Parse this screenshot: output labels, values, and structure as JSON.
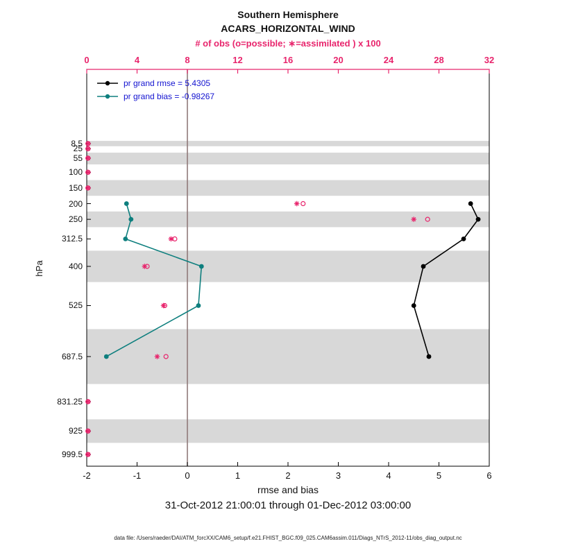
{
  "titles": {
    "line1": "Southern Hemisphere",
    "line2": "ACARS_HORIZONTAL_WIND"
  },
  "axes": {
    "top_label": "# of obs (o=possible; ∗=assimilated ) x 100",
    "bottom_label": "rmse and bias",
    "left_label": "hPa"
  },
  "legend": {
    "rmse_label": "pr grand rmse = 5.4305",
    "bias_label": "pr grand bias = -0.98267"
  },
  "footer": {
    "timespan": "31-Oct-2012 21:00:01 through 01-Dec-2012 03:00:00",
    "datafile": "data file: /Users/raeder/DAI/ATM_forcXX/CAM6_setup/f.e21.FHIST_BGC.f09_025.CAM6assim.011/Diags_NTrS_2012-11/obs_diag_output.nc"
  },
  "colors": {
    "obs_pink": "#e8246c",
    "rmse_black": "#000000",
    "bias_teal": "#0e7f7e",
    "legend_text_blue": "#1212d0",
    "band_gray": "#d8d8d8",
    "zero_line": "#8f7a7a",
    "frame": "#000000"
  },
  "chart_data": {
    "type": "line",
    "title": "Southern Hemisphere ACARS_HORIZONTAL_WIND",
    "xlabel": "rmse and bias",
    "ylabel": "hPa",
    "top_xlabel": "# of obs (o=possible; *=assimilated ) x 100",
    "y_axis": {
      "unit": "hPa",
      "levels": [
        8.5,
        25,
        55,
        100,
        150,
        200,
        250,
        312.5,
        400,
        525,
        687.5,
        831.25,
        925,
        999.5
      ],
      "range": [
        -228,
        1037
      ]
    },
    "x_bottom_axis": {
      "ticks": [
        -2,
        -1,
        0,
        1,
        2,
        3,
        4,
        5,
        6
      ],
      "range": [
        -2,
        6
      ]
    },
    "x_top_axis": {
      "ticks": [
        0,
        4,
        8,
        12,
        16,
        20,
        24,
        28,
        32
      ],
      "range": [
        0,
        32
      ]
    },
    "grand_stats": {
      "rmse": 5.4305,
      "bias": -0.98267
    },
    "series": [
      {
        "name": "rmse",
        "color": "#000000",
        "levels": [
          200,
          250,
          312.5,
          400,
          525,
          687.5
        ],
        "values": [
          5.63,
          5.78,
          5.49,
          4.69,
          4.5,
          4.8
        ]
      },
      {
        "name": "bias",
        "color": "#0e7f7e",
        "levels": [
          200,
          250,
          312.5,
          400,
          525,
          687.5
        ],
        "values": [
          -1.21,
          -1.12,
          -1.23,
          0.28,
          0.22,
          -1.61
        ]
      }
    ],
    "obs_counts_x100": {
      "levels": [
        8.5,
        25,
        55,
        100,
        150,
        200,
        250,
        312.5,
        400,
        525,
        687.5,
        831.25,
        925,
        999.5
      ],
      "possible": [
        0.1,
        0.1,
        0.1,
        0.1,
        0.1,
        17.2,
        27.1,
        7.0,
        4.8,
        6.2,
        6.3,
        0.1,
        0.1,
        0.1
      ],
      "assimilated": [
        0.1,
        0.1,
        0.1,
        0.1,
        0.1,
        16.7,
        26.0,
        6.7,
        4.6,
        6.1,
        5.6,
        0.1,
        0.1,
        0.1
      ]
    },
    "shaded_bins": [
      [
        0,
        17
      ],
      [
        37.5,
        75
      ],
      [
        125,
        175
      ],
      [
        225,
        275
      ],
      [
        350,
        450
      ],
      [
        600,
        775
      ],
      [
        887.5,
        962.5
      ]
    ],
    "zero_line_x": 0
  }
}
